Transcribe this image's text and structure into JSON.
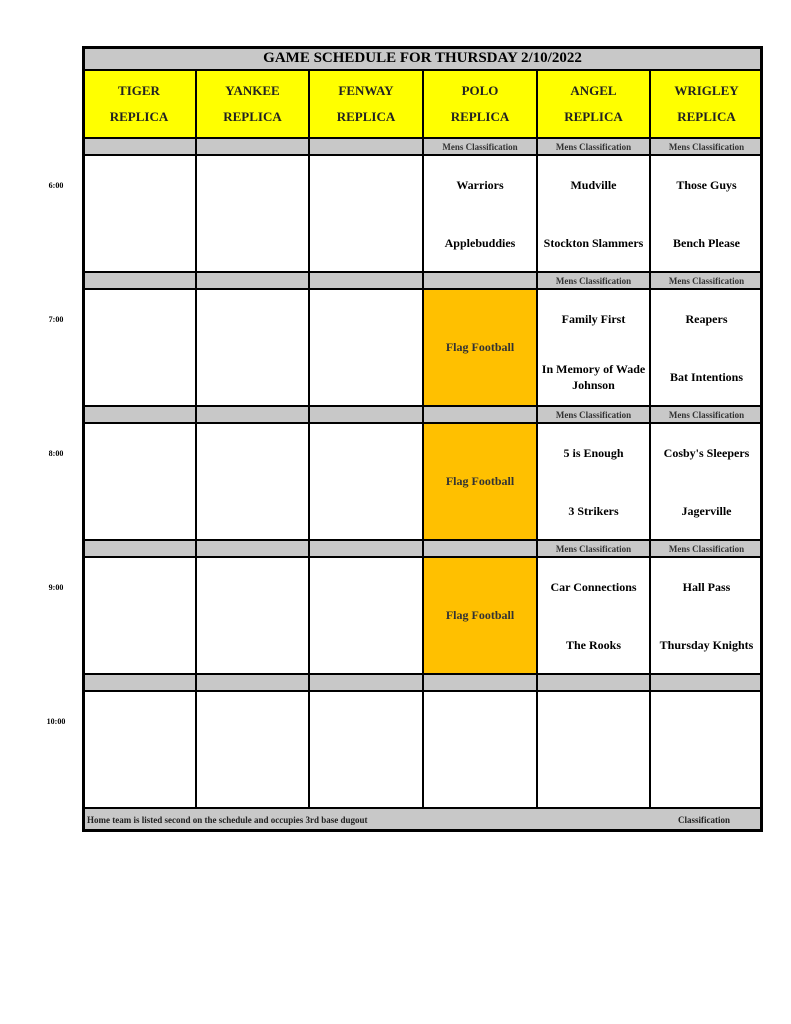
{
  "title": "GAME SCHEDULE FOR THURSDAY 2/10/2022",
  "colors": {
    "header": "#ffff00",
    "strip": "#c8c8c8",
    "event": "#ffc000",
    "cell": "#ffffff"
  },
  "fields": [
    {
      "name": "TIGER",
      "sub": "REPLICA"
    },
    {
      "name": "YANKEE",
      "sub": "REPLICA"
    },
    {
      "name": "FENWAY",
      "sub": "REPLICA"
    },
    {
      "name": "POLO",
      "sub": "REPLICA"
    },
    {
      "name": "ANGEL",
      "sub": "REPLICA"
    },
    {
      "name": "WRIGLEY",
      "sub": "REPLICA"
    }
  ],
  "slots": [
    {
      "time": "6:00",
      "strip": [
        "",
        "",
        "",
        "Mens Classification",
        "Mens Classification",
        "Mens Classification"
      ],
      "cells": [
        {},
        {},
        {},
        {
          "teams": [
            "Warriors",
            "Applebuddies"
          ]
        },
        {
          "teams": [
            "Mudville",
            "Stockton Slammers"
          ]
        },
        {
          "teams": [
            "Those Guys",
            "Bench Please"
          ]
        }
      ]
    },
    {
      "time": "7:00",
      "strip": [
        "",
        "",
        "",
        "",
        "Mens Classification",
        "Mens Classification"
      ],
      "cells": [
        {},
        {},
        {},
        {
          "event": "Flag Football"
        },
        {
          "teams": [
            "Family First",
            "In Memory of Wade Johnson"
          ]
        },
        {
          "teams": [
            "Reapers",
            "Bat Intentions"
          ]
        }
      ]
    },
    {
      "time": "8:00",
      "strip": [
        "",
        "",
        "",
        "",
        "Mens Classification",
        "Mens Classification"
      ],
      "cells": [
        {},
        {},
        {},
        {
          "event": "Flag Football"
        },
        {
          "teams": [
            "5 is Enough",
            "3 Strikers"
          ]
        },
        {
          "teams": [
            "Cosby's Sleepers",
            "Jagerville"
          ]
        }
      ]
    },
    {
      "time": "9:00",
      "strip": [
        "",
        "",
        "",
        "",
        "Mens Classification",
        "Mens Classification"
      ],
      "cells": [
        {},
        {},
        {},
        {
          "event": "Flag Football"
        },
        {
          "teams": [
            "Car Connections",
            "The Rooks"
          ]
        },
        {
          "teams": [
            "Hall Pass",
            "Thursday Knights"
          ]
        }
      ]
    },
    {
      "time": "10:00",
      "strip": [
        "",
        "",
        "",
        "",
        "",
        ""
      ],
      "cells": [
        {},
        {},
        {},
        {},
        {},
        {}
      ]
    }
  ],
  "footer": {
    "note": "Home team is listed second on the schedule and occupies 3rd base dugout",
    "right": "Classification"
  }
}
